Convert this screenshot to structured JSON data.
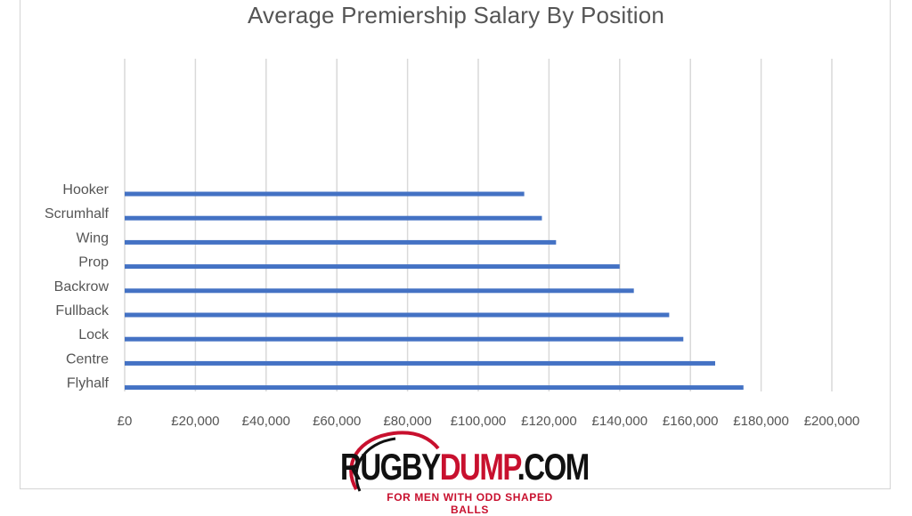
{
  "chart_data": {
    "type": "bar",
    "orientation": "horizontal",
    "title": "Average Premiership Salary By Position",
    "categories": [
      "Hooker",
      "Scrumhalf",
      "Wing",
      "Prop",
      "Backrow",
      "Fullback",
      "Lock",
      "Centre",
      "Flyhalf"
    ],
    "values": [
      113000,
      118000,
      122000,
      140000,
      144000,
      154000,
      158000,
      167000,
      175000
    ],
    "xlim": [
      0,
      200000
    ],
    "xticks": [
      "£0",
      "£20,000",
      "£40,000",
      "£60,000",
      "£80,000",
      "£100,000",
      "£120,000",
      "£140,000",
      "£160,000",
      "£180,000",
      "£200,000"
    ],
    "grid": "vertical",
    "bar_color": "#4472c4",
    "legend": "none"
  },
  "watermark": {
    "main_part1": "RUGBY",
    "main_part2": "DUMP",
    "main_part3": ".COM",
    "tagline": "FOR MEN WITH ODD SHAPED BALLS"
  }
}
